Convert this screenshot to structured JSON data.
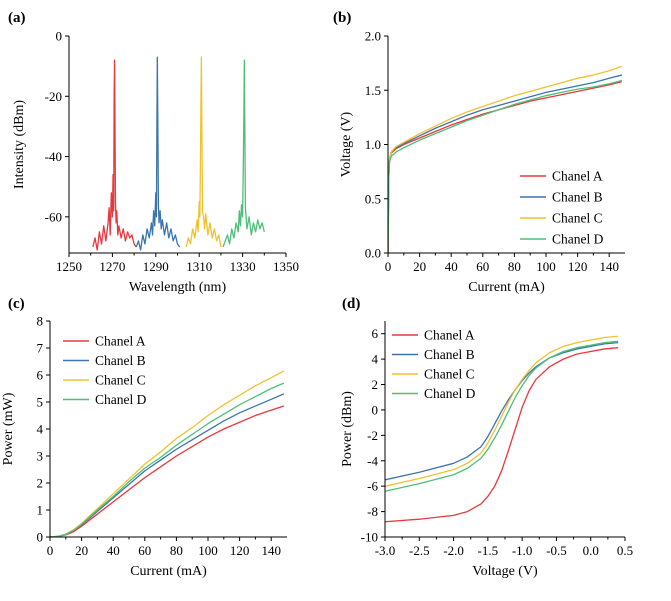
{
  "colors": {
    "Chanel A": "#e8383d",
    "Chanel B": "#3b75af",
    "Chanel C": "#f2c12e",
    "Chanel D": "#4ebf78"
  },
  "chart_data": [
    {
      "id": "a",
      "label": "(a)",
      "type": "line",
      "xlabel": "Wavelength (nm)",
      "ylabel": "Intensity (dBm)",
      "xlim": [
        1250,
        1350
      ],
      "ylim": [
        -72,
        0
      ],
      "xticks": [
        1250,
        1270,
        1290,
        1310,
        1330,
        1350
      ],
      "yticks": [
        0,
        -20,
        -40,
        -60
      ],
      "xtick_labels": [
        "1250",
        "1270",
        "1290",
        "1310",
        "1330",
        "1350"
      ],
      "ytick_labels": [
        "0",
        "-20",
        "-40",
        "-60"
      ],
      "series": [
        {
          "name": "Chanel A",
          "peak": [
            1271,
            -8
          ],
          "x": [
            1261,
            1262,
            1263,
            1264,
            1265,
            1266,
            1267,
            1268,
            1268.5,
            1269,
            1269.5,
            1270,
            1270.3,
            1270.6,
            1270.8,
            1271,
            1271.2,
            1271.4,
            1271.7,
            1272,
            1272.5,
            1273,
            1274,
            1275,
            1276,
            1277,
            1278,
            1279,
            1280,
            1281
          ],
          "y": [
            -70,
            -67,
            -71,
            -65,
            -69,
            -63,
            -68,
            -62,
            -57,
            -66,
            -52,
            -60,
            -46,
            -58,
            -20,
            -8,
            -30,
            -55,
            -62,
            -58,
            -66,
            -63,
            -67,
            -64,
            -68,
            -65,
            -67,
            -66,
            -69,
            -70
          ]
        },
        {
          "name": "Chanel B",
          "peak": [
            1290.7,
            -7
          ],
          "x": [
            1281,
            1282,
            1283,
            1284,
            1285,
            1286,
            1287,
            1288,
            1288.5,
            1289,
            1289.5,
            1290,
            1290.3,
            1290.5,
            1290.7,
            1290.9,
            1291.2,
            1291.5,
            1292,
            1292.5,
            1293,
            1294,
            1295,
            1296,
            1297,
            1298,
            1299,
            1300,
            1301
          ],
          "y": [
            -70,
            -68,
            -71,
            -66,
            -69,
            -64,
            -67,
            -62,
            -66,
            -58,
            -63,
            -52,
            -60,
            -30,
            -7,
            -25,
            -56,
            -62,
            -58,
            -64,
            -61,
            -66,
            -62,
            -67,
            -64,
            -68,
            -66,
            -69,
            -70
          ]
        },
        {
          "name": "Chanel C",
          "peak": [
            1311,
            -7
          ],
          "x": [
            1304,
            1305,
            1306,
            1307,
            1308,
            1309,
            1309.5,
            1310,
            1310.3,
            1310.6,
            1310.8,
            1311,
            1311.2,
            1311.5,
            1312,
            1312.5,
            1313,
            1314,
            1315,
            1316,
            1317,
            1318,
            1319,
            1320
          ],
          "y": [
            -70,
            -67,
            -69,
            -64,
            -67,
            -61,
            -65,
            -55,
            -60,
            -40,
            -22,
            -7,
            -28,
            -58,
            -60,
            -64,
            -59,
            -66,
            -62,
            -67,
            -64,
            -68,
            -66,
            -70
          ]
        },
        {
          "name": "Chanel D",
          "peak": [
            1330.8,
            -8
          ],
          "x": [
            1321,
            1322,
            1323,
            1324,
            1325,
            1326,
            1327,
            1328,
            1328.5,
            1329,
            1329.5,
            1330,
            1330.3,
            1330.6,
            1330.8,
            1331,
            1331.3,
            1331.7,
            1332,
            1333,
            1334,
            1335,
            1336,
            1337,
            1338,
            1339,
            1340
          ],
          "y": [
            -70,
            -68,
            -66,
            -69,
            -64,
            -67,
            -62,
            -65,
            -58,
            -63,
            -56,
            -60,
            -45,
            -25,
            -8,
            -28,
            -57,
            -61,
            -64,
            -60,
            -66,
            -62,
            -65,
            -61,
            -64,
            -62,
            -65
          ]
        }
      ]
    },
    {
      "id": "b",
      "label": "(b)",
      "type": "line",
      "xlabel": "Current (mA)",
      "ylabel": "Voltage (V)",
      "xlim": [
        0,
        150
      ],
      "ylim": [
        0,
        2
      ],
      "xticks": [
        0,
        20,
        40,
        60,
        80,
        100,
        120,
        140
      ],
      "yticks": [
        0,
        0.5,
        1,
        1.5,
        2
      ],
      "xtick_labels": [
        "0",
        "20",
        "40",
        "60",
        "80",
        "100",
        "120",
        "140"
      ],
      "ytick_labels": [
        "0.0",
        "0.5",
        "1.0",
        "1.5",
        "2.0"
      ],
      "legend": "bottom-right",
      "series": [
        {
          "name": "Chanel A",
          "x": [
            0,
            0.5,
            1,
            2,
            5,
            10,
            20,
            30,
            40,
            50,
            60,
            70,
            80,
            90,
            100,
            110,
            120,
            130,
            140,
            148
          ],
          "y": [
            0,
            0.7,
            0.85,
            0.92,
            0.96,
            1.0,
            1.06,
            1.12,
            1.18,
            1.23,
            1.28,
            1.32,
            1.36,
            1.4,
            1.43,
            1.46,
            1.49,
            1.52,
            1.55,
            1.58
          ]
        },
        {
          "name": "Chanel B",
          "x": [
            0,
            0.5,
            1,
            2,
            5,
            10,
            20,
            30,
            40,
            50,
            60,
            70,
            80,
            90,
            100,
            110,
            120,
            130,
            140,
            148
          ],
          "y": [
            0,
            0.72,
            0.87,
            0.93,
            0.97,
            1.01,
            1.08,
            1.15,
            1.21,
            1.27,
            1.32,
            1.36,
            1.4,
            1.44,
            1.48,
            1.51,
            1.54,
            1.57,
            1.61,
            1.64
          ]
        },
        {
          "name": "Chanel C",
          "x": [
            0,
            0.5,
            1,
            2,
            5,
            10,
            20,
            30,
            40,
            50,
            60,
            70,
            80,
            90,
            100,
            110,
            120,
            130,
            140,
            148
          ],
          "y": [
            0,
            0.7,
            0.86,
            0.93,
            0.98,
            1.02,
            1.1,
            1.17,
            1.24,
            1.3,
            1.35,
            1.4,
            1.45,
            1.49,
            1.53,
            1.57,
            1.61,
            1.64,
            1.68,
            1.72
          ]
        },
        {
          "name": "Chanel D",
          "x": [
            0,
            0.5,
            1,
            2,
            5,
            10,
            20,
            30,
            40,
            50,
            60,
            70,
            80,
            90,
            100,
            110,
            120,
            130,
            140,
            148
          ],
          "y": [
            0,
            0.69,
            0.84,
            0.89,
            0.93,
            0.97,
            1.04,
            1.1,
            1.16,
            1.22,
            1.27,
            1.32,
            1.37,
            1.41,
            1.45,
            1.48,
            1.51,
            1.53,
            1.56,
            1.59
          ]
        }
      ]
    },
    {
      "id": "c",
      "label": "(c)",
      "type": "line",
      "xlabel": "Current (mA)",
      "ylabel": "Power (mW)",
      "xlim": [
        0,
        150
      ],
      "ylim": [
        0,
        8
      ],
      "xticks": [
        0,
        20,
        40,
        60,
        80,
        100,
        120,
        140
      ],
      "yticks": [
        0,
        1,
        2,
        3,
        4,
        5,
        6,
        7,
        8
      ],
      "xtick_labels": [
        "0",
        "20",
        "40",
        "60",
        "80",
        "100",
        "120",
        "140"
      ],
      "ytick_labels": [
        "0",
        "1",
        "2",
        "3",
        "4",
        "5",
        "6",
        "7",
        "8"
      ],
      "legend": "top-left",
      "series": [
        {
          "name": "Chanel A",
          "x": [
            0,
            5,
            10,
            15,
            20,
            30,
            40,
            50,
            60,
            70,
            80,
            90,
            100,
            110,
            120,
            130,
            140,
            148
          ],
          "y": [
            0,
            0.02,
            0.08,
            0.2,
            0.4,
            0.85,
            1.3,
            1.75,
            2.2,
            2.6,
            3.0,
            3.35,
            3.7,
            4.0,
            4.25,
            4.5,
            4.7,
            4.85
          ]
        },
        {
          "name": "Chanel B",
          "x": [
            0,
            5,
            10,
            15,
            20,
            30,
            40,
            50,
            60,
            70,
            80,
            90,
            100,
            110,
            120,
            130,
            140,
            148
          ],
          "y": [
            0,
            0.02,
            0.1,
            0.25,
            0.45,
            0.95,
            1.45,
            1.95,
            2.45,
            2.85,
            3.25,
            3.6,
            3.95,
            4.3,
            4.6,
            4.85,
            5.1,
            5.3
          ]
        },
        {
          "name": "Chanel C",
          "x": [
            0,
            5,
            10,
            15,
            20,
            30,
            40,
            50,
            60,
            70,
            80,
            90,
            100,
            110,
            120,
            130,
            140,
            148
          ],
          "y": [
            0,
            0.02,
            0.1,
            0.27,
            0.5,
            1.05,
            1.6,
            2.15,
            2.7,
            3.15,
            3.65,
            4.05,
            4.5,
            4.9,
            5.25,
            5.6,
            5.9,
            6.15
          ]
        },
        {
          "name": "Chanel D",
          "x": [
            0,
            5,
            10,
            15,
            20,
            30,
            40,
            50,
            60,
            70,
            80,
            90,
            100,
            110,
            120,
            130,
            140,
            148
          ],
          "y": [
            0,
            0.02,
            0.1,
            0.25,
            0.47,
            1.0,
            1.5,
            2.05,
            2.55,
            2.95,
            3.4,
            3.8,
            4.2,
            4.55,
            4.9,
            5.2,
            5.5,
            5.7
          ]
        }
      ]
    },
    {
      "id": "d",
      "label": "(d)",
      "type": "line",
      "xlabel": "Voltage (V)",
      "ylabel": "Power (dBm)",
      "xlim": [
        -3.0,
        0.5
      ],
      "ylim": [
        -10,
        7
      ],
      "xticks": [
        -3.0,
        -2.5,
        -2.0,
        -1.5,
        -1.0,
        -0.5,
        0.0,
        0.5
      ],
      "yticks": [
        -10,
        -8,
        -6,
        -4,
        -2,
        0,
        2,
        4,
        6
      ],
      "xtick_labels": [
        "-3.0",
        "-2.5",
        "-2.0",
        "-1.5",
        "-1.0",
        "-0.5",
        "0.0",
        "0.5"
      ],
      "ytick_labels": [
        "-10",
        "-8",
        "-6",
        "-4",
        "-2",
        "0",
        "2",
        "4",
        "6"
      ],
      "legend": "top-left",
      "series": [
        {
          "name": "Chanel A",
          "x": [
            -3.0,
            -2.5,
            -2.0,
            -1.8,
            -1.6,
            -1.5,
            -1.4,
            -1.3,
            -1.2,
            -1.1,
            -1.0,
            -0.9,
            -0.8,
            -0.6,
            -0.4,
            -0.2,
            0.0,
            0.2,
            0.4
          ],
          "y": [
            -8.8,
            -8.6,
            -8.3,
            -8.0,
            -7.4,
            -6.8,
            -6.0,
            -4.8,
            -3.2,
            -1.5,
            0.2,
            1.5,
            2.4,
            3.4,
            4.0,
            4.4,
            4.6,
            4.8,
            4.9
          ]
        },
        {
          "name": "Chanel B",
          "x": [
            -3.0,
            -2.5,
            -2.0,
            -1.8,
            -1.6,
            -1.5,
            -1.4,
            -1.3,
            -1.2,
            -1.1,
            -1.0,
            -0.9,
            -0.8,
            -0.6,
            -0.4,
            -0.2,
            0.0,
            0.2,
            0.4
          ],
          "y": [
            -5.5,
            -4.9,
            -4.2,
            -3.7,
            -2.9,
            -2.1,
            -1.1,
            -0.1,
            0.8,
            1.6,
            2.3,
            2.9,
            3.4,
            4.1,
            4.5,
            4.8,
            5.0,
            5.2,
            5.3
          ]
        },
        {
          "name": "Chanel C",
          "x": [
            -3.0,
            -2.5,
            -2.0,
            -1.8,
            -1.6,
            -1.5,
            -1.4,
            -1.3,
            -1.2,
            -1.1,
            -1.0,
            -0.9,
            -0.8,
            -0.6,
            -0.4,
            -0.2,
            0.0,
            0.2,
            0.4
          ],
          "y": [
            -6.0,
            -5.4,
            -4.7,
            -4.2,
            -3.4,
            -2.6,
            -1.6,
            -0.5,
            0.6,
            1.6,
            2.4,
            3.1,
            3.7,
            4.5,
            5.0,
            5.3,
            5.5,
            5.7,
            5.8
          ]
        },
        {
          "name": "Chanel D",
          "x": [
            -3.0,
            -2.5,
            -2.0,
            -1.8,
            -1.6,
            -1.5,
            -1.4,
            -1.3,
            -1.2,
            -1.1,
            -1.0,
            -0.9,
            -0.8,
            -0.6,
            -0.4,
            -0.2,
            0.0,
            0.2,
            0.4
          ],
          "y": [
            -6.4,
            -5.8,
            -5.1,
            -4.6,
            -3.8,
            -3.1,
            -2.2,
            -1.2,
            -0.1,
            1.0,
            1.9,
            2.7,
            3.3,
            4.1,
            4.6,
            4.9,
            5.1,
            5.3,
            5.4
          ]
        }
      ]
    }
  ]
}
